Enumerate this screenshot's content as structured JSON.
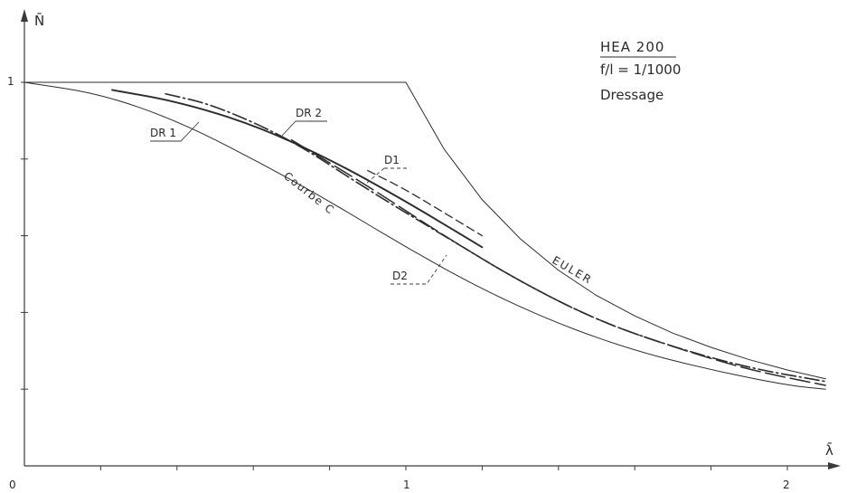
{
  "chart_data": {
    "type": "line",
    "title": "HEA 200",
    "annotations": {
      "imperfection": "f/l = 1/1000",
      "method": "Dressage"
    },
    "xlabel": "λ̄",
    "ylabel": "N̄",
    "xlim": [
      0,
      2.1
    ],
    "ylim": [
      0,
      1.1
    ],
    "x_tick_labels": [
      "0",
      "1",
      "2"
    ],
    "y_tick_labels": [
      "1"
    ],
    "grid": false,
    "series": [
      {
        "name": "EULER",
        "style": "solid-thin",
        "x": [
          0,
          1.0,
          1.1,
          1.2,
          1.3,
          1.4,
          1.5,
          1.6,
          1.7,
          1.8,
          1.9,
          2.0,
          2.1
        ],
        "y": [
          1.0,
          1.0,
          0.826,
          0.694,
          0.592,
          0.51,
          0.444,
          0.391,
          0.346,
          0.309,
          0.277,
          0.25,
          0.227
        ]
      },
      {
        "name": "Courbe C",
        "style": "solid-thin",
        "x": [
          0,
          0.2,
          0.4,
          0.6,
          0.8,
          1.0,
          1.2,
          1.4,
          1.6,
          1.8,
          2.0,
          2.1
        ],
        "y": [
          1.0,
          0.97,
          0.9,
          0.8,
          0.69,
          0.57,
          0.46,
          0.37,
          0.3,
          0.25,
          0.21,
          0.2
        ]
      },
      {
        "name": "DR 1",
        "style": "solid-thick",
        "x": [
          0.23,
          0.4,
          0.6,
          0.8,
          1.0,
          1.2
        ],
        "y": [
          0.98,
          0.95,
          0.89,
          0.8,
          0.69,
          0.57
        ]
      },
      {
        "name": "DR 2",
        "style": "dash-dot",
        "x": [
          0.37,
          0.5,
          0.7,
          0.9,
          1.1,
          1.3,
          1.5,
          1.7,
          1.9,
          2.1
        ],
        "y": [
          0.97,
          0.94,
          0.85,
          0.72,
          0.6,
          0.48,
          0.38,
          0.31,
          0.255,
          0.22
        ]
      },
      {
        "name": "D1",
        "style": "dashed",
        "x": [
          0.9,
          1.0,
          1.1,
          1.2
        ],
        "y": [
          0.77,
          0.72,
          0.66,
          0.6
        ]
      },
      {
        "name": "D2",
        "style": "long-dash",
        "x": [
          0.7,
          0.9,
          1.1,
          1.3,
          1.5,
          1.7,
          1.9,
          2.1
        ],
        "y": [
          0.85,
          0.73,
          0.6,
          0.48,
          0.38,
          0.31,
          0.25,
          0.21
        ]
      }
    ]
  }
}
